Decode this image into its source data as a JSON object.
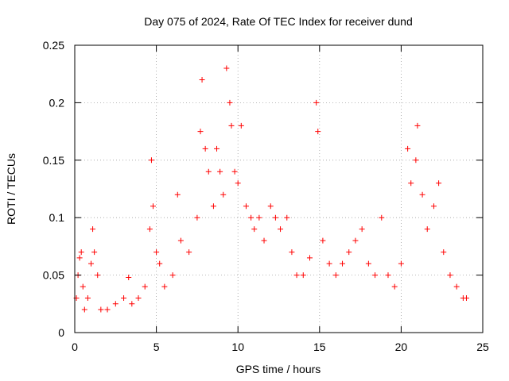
{
  "chart_data": {
    "type": "scatter",
    "title": "Day 075 of 2024, Rate Of TEC Index for receiver dund",
    "xlabel": "GPS time / hours",
    "ylabel": "ROTI / TECUs",
    "xlim": [
      0,
      25
    ],
    "ylim": [
      0,
      0.25
    ],
    "xticks": [
      0,
      5,
      10,
      15,
      20,
      25
    ],
    "yticks": [
      0,
      0.05,
      0.1,
      0.15,
      0.2,
      0.25
    ],
    "xtick_labels": [
      "0",
      "5",
      "10",
      "15",
      "20",
      "25"
    ],
    "ytick_labels": [
      "0",
      "0.05",
      "0.1",
      "0.15",
      "0.2",
      "0.25"
    ],
    "grid": true,
    "marker": "+",
    "series": [
      {
        "color": "#ff0000",
        "x": [
          0.1,
          0.2,
          0.3,
          0.4,
          0.5,
          0.6,
          0.8,
          1.0,
          1.1,
          1.2,
          1.4,
          1.6,
          2.0,
          2.5,
          3.0,
          3.3,
          3.5,
          3.9,
          4.3,
          4.6,
          4.7,
          4.8,
          5.0,
          5.2,
          5.5,
          6.0,
          6.3,
          6.5,
          7.0,
          7.5,
          7.7,
          7.8,
          8.0,
          8.2,
          8.5,
          8.7,
          8.9,
          9.1,
          9.3,
          9.5,
          9.6,
          9.8,
          10.0,
          10.2,
          10.5,
          10.8,
          11.0,
          11.3,
          11.6,
          12.0,
          12.3,
          12.6,
          13.0,
          13.3,
          13.6,
          14.0,
          14.4,
          14.8,
          14.9,
          15.2,
          15.6,
          16.0,
          16.4,
          16.8,
          17.2,
          17.6,
          18.0,
          18.4,
          18.8,
          19.2,
          19.6,
          20.0,
          20.4,
          20.6,
          20.9,
          21.0,
          21.3,
          21.6,
          22.0,
          22.3,
          22.6,
          23.0,
          23.4,
          23.8,
          24.0
        ],
        "y": [
          0.03,
          0.05,
          0.065,
          0.07,
          0.04,
          0.02,
          0.03,
          0.06,
          0.09,
          0.07,
          0.05,
          0.02,
          0.02,
          0.025,
          0.03,
          0.048,
          0.025,
          0.03,
          0.04,
          0.09,
          0.15,
          0.11,
          0.07,
          0.06,
          0.04,
          0.05,
          0.12,
          0.08,
          0.07,
          0.1,
          0.175,
          0.22,
          0.16,
          0.14,
          0.11,
          0.16,
          0.14,
          0.12,
          0.23,
          0.2,
          0.18,
          0.14,
          0.13,
          0.18,
          0.11,
          0.1,
          0.09,
          0.1,
          0.08,
          0.11,
          0.1,
          0.09,
          0.1,
          0.07,
          0.05,
          0.05,
          0.065,
          0.2,
          0.175,
          0.08,
          0.06,
          0.05,
          0.06,
          0.07,
          0.08,
          0.09,
          0.06,
          0.05,
          0.1,
          0.05,
          0.04,
          0.06,
          0.16,
          0.13,
          0.15,
          0.18,
          0.12,
          0.09,
          0.11,
          0.13,
          0.07,
          0.05,
          0.04,
          0.03,
          0.03
        ]
      }
    ]
  }
}
